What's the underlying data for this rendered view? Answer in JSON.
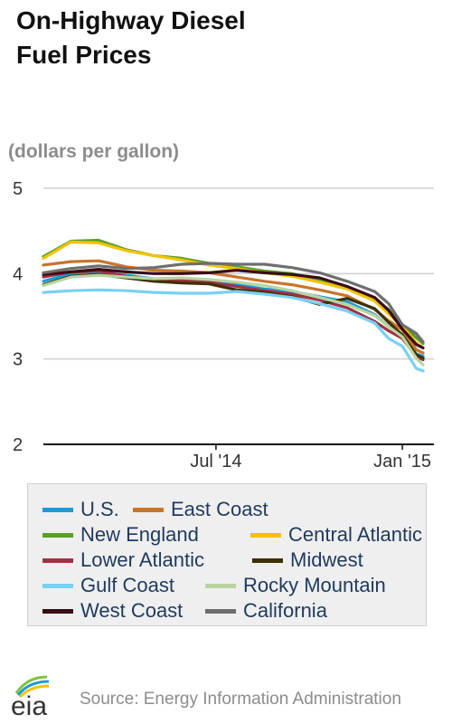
{
  "header": {
    "title": "On-Highway Diesel Fuel Prices",
    "units": "(dollars per gallon)"
  },
  "footer": {
    "source": "Source: Energy Information Administration",
    "logo_text": "eia"
  },
  "chart_data": {
    "type": "line",
    "title": "On-Highway Diesel Fuel Prices",
    "ylabel": "(dollars per gallon)",
    "xlabel": "",
    "ylim": [
      2,
      5
    ],
    "yticks": [
      2,
      3,
      4,
      5
    ],
    "xlim": [
      "2014-01-06",
      "2015-01-26"
    ],
    "xticks": [
      {
        "label": "Jul '14",
        "date": "2014-06-30"
      },
      {
        "label": "Jan '15",
        "date": "2015-01-05"
      }
    ],
    "grid": "horizontal",
    "legend_position": "bottom",
    "x": [
      "2014-01-06",
      "2014-02-03",
      "2014-03-03",
      "2014-03-31",
      "2014-04-28",
      "2014-05-26",
      "2014-06-23",
      "2014-07-21",
      "2014-08-18",
      "2014-09-15",
      "2014-10-13",
      "2014-11-10",
      "2014-12-08",
      "2014-12-22",
      "2015-01-05",
      "2015-01-19",
      "2015-01-26"
    ],
    "series": [
      {
        "name": "U.S.",
        "color": "#1a9bd7",
        "values": [
          3.91,
          4.0,
          4.02,
          3.98,
          3.94,
          3.93,
          3.92,
          3.87,
          3.82,
          3.79,
          3.73,
          3.67,
          3.52,
          3.38,
          3.29,
          3.06,
          3.03
        ]
      },
      {
        "name": "East Coast",
        "color": "#c8752a",
        "values": [
          4.1,
          4.14,
          4.15,
          4.08,
          4.04,
          4.03,
          4.01,
          3.96,
          3.91,
          3.87,
          3.81,
          3.74,
          3.58,
          3.45,
          3.34,
          3.11,
          3.07
        ]
      },
      {
        "name": "New England",
        "color": "#5a9e2a",
        "values": [
          4.2,
          4.38,
          4.39,
          4.28,
          4.21,
          4.18,
          4.12,
          4.08,
          4.03,
          4.0,
          3.93,
          3.84,
          3.71,
          3.58,
          3.4,
          3.25,
          3.18
        ]
      },
      {
        "name": "Central Atlantic",
        "color": "#f2c300",
        "values": [
          4.18,
          4.37,
          4.36,
          4.27,
          4.21,
          4.16,
          4.1,
          4.06,
          4.01,
          3.97,
          3.9,
          3.82,
          3.68,
          3.53,
          3.38,
          3.19,
          3.13
        ]
      },
      {
        "name": "Lower Atlantic",
        "color": "#a03246",
        "values": [
          3.96,
          4.02,
          4.03,
          3.97,
          3.93,
          3.92,
          3.9,
          3.85,
          3.8,
          3.76,
          3.69,
          3.6,
          3.44,
          3.33,
          3.24,
          3.03,
          2.99
        ]
      },
      {
        "name": "Midwest",
        "color": "#3d3000",
        "values": [
          3.87,
          3.97,
          3.99,
          3.95,
          3.91,
          3.89,
          3.88,
          3.81,
          3.78,
          3.73,
          3.64,
          3.71,
          3.59,
          3.43,
          3.28,
          3.05,
          3.01
        ]
      },
      {
        "name": "Gulf Coast",
        "color": "#79d0f4",
        "values": [
          3.78,
          3.8,
          3.81,
          3.8,
          3.78,
          3.77,
          3.77,
          3.79,
          3.76,
          3.72,
          3.65,
          3.56,
          3.42,
          3.24,
          3.15,
          2.89,
          2.86
        ]
      },
      {
        "name": "Rocky Mountain",
        "color": "#b8d4a0",
        "values": [
          3.86,
          3.96,
          3.98,
          3.96,
          3.94,
          3.95,
          3.93,
          3.9,
          3.86,
          3.8,
          3.72,
          3.64,
          3.51,
          3.38,
          3.26,
          3.01,
          2.93
        ]
      },
      {
        "name": "West Coast",
        "color": "#3a0c16",
        "values": [
          3.99,
          4.02,
          4.05,
          4.02,
          4.0,
          4.0,
          4.01,
          4.04,
          4.01,
          3.99,
          3.95,
          3.85,
          3.72,
          3.57,
          3.35,
          3.17,
          3.13
        ]
      },
      {
        "name": "California",
        "color": "#6e6e6e",
        "values": [
          4.01,
          4.06,
          4.09,
          4.06,
          4.07,
          4.11,
          4.12,
          4.11,
          4.11,
          4.07,
          4.01,
          3.91,
          3.79,
          3.65,
          3.4,
          3.3,
          3.2
        ]
      }
    ]
  }
}
